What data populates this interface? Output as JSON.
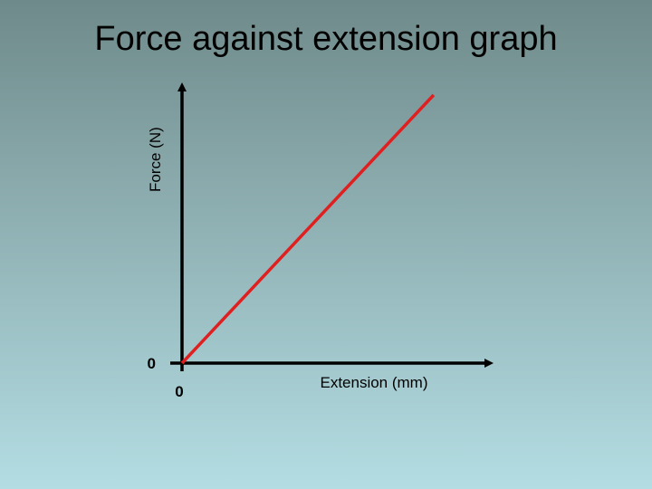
{
  "slide": {
    "title": "Force against extension graph"
  },
  "chart_data": {
    "type": "line",
    "title": "Force against extension graph",
    "xlabel": "Extension (mm)",
    "ylabel": "Force (N)",
    "x_tick_labels": [
      "0"
    ],
    "y_tick_labels": [
      "0"
    ],
    "series": [
      {
        "color": "#e02020",
        "x": [
          0,
          1
        ],
        "y": [
          0,
          1
        ]
      }
    ],
    "xlim": [
      0,
      1.22
    ],
    "ylim": [
      0,
      1.03
    ],
    "grid": false,
    "legend": "none",
    "axis_color": "#000000"
  }
}
